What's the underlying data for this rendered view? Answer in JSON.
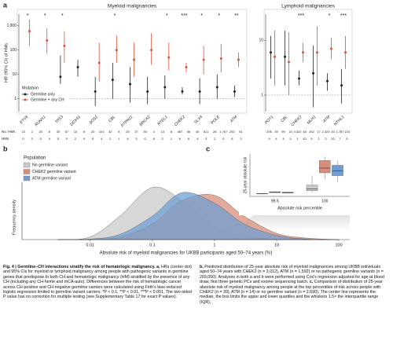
{
  "chart_data": [
    {
      "type": "interval",
      "panel": "a",
      "title": "Myeloid malignancies",
      "y_label": "HR (95% CI) of HMs",
      "log_y": true,
      "ylim": [
        0.3,
        3000
      ],
      "yticks": [
        1,
        10,
        100,
        {
          "value": 1000,
          "label": "1,000"
        }
      ],
      "categories": [
        "ETV6",
        "RUNX1",
        "TP53",
        "DDX41",
        "SOS1",
        "CBL",
        "PTPN11",
        "BRCA2",
        "RTEL1",
        "CHEK2",
        "SLX4",
        "POLE",
        "ATM"
      ],
      "significance": [
        "*",
        "*",
        "*",
        null,
        null,
        "*",
        null,
        null,
        "*",
        "***",
        "*",
        "*",
        "**"
      ],
      "legend_title": "Mutation",
      "legend": true,
      "series": [
        {
          "name": "Germline only",
          "color": "#222222",
          "values": [
            null,
            null,
            8,
            20,
            2,
            6,
            4,
            2,
            3,
            2,
            2,
            3,
            2
          ],
          "ci_low": [
            null,
            null,
            1,
            8,
            0.5,
            1,
            0.7,
            0.6,
            1,
            1.5,
            0.6,
            1,
            1.2
          ],
          "ci_high": [
            null,
            null,
            60,
            40,
            8,
            30,
            20,
            8,
            9,
            3,
            7,
            10,
            3.5
          ]
        },
        {
          "name": "Germline + any CH",
          "color": "#d9533c",
          "values": [
            600,
            250,
            150,
            null,
            30,
            100,
            40,
            100,
            50,
            20,
            40,
            45,
            40
          ],
          "ci_low": [
            150,
            70,
            30,
            null,
            5,
            30,
            8,
            25,
            15,
            12,
            10,
            12,
            20
          ],
          "ci_high": [
            1800,
            800,
            600,
            null,
            200,
            400,
            200,
            500,
            200,
            30,
            150,
            180,
            80
          ]
        }
      ],
      "counts": [
        {
          "label": "No. HMs",
          "values": [
            "13",
            "2",
            "20",
            "8",
            "30",
            "67",
            "10",
            "8",
            "20",
            "101",
            "32",
            "8",
            "20",
            "37",
            "30",
            "4",
            "13",
            "8",
            "487",
            "56",
            "40",
            "811",
            "28",
            "1,767",
            "292",
            "61"
          ]
        },
        {
          "label": "HMs",
          "values": [
            "0",
            "3",
            "0",
            "4",
            "5",
            "0",
            "2",
            "0",
            "5",
            "4",
            "2",
            "1",
            "4",
            "3",
            "0",
            "6",
            "2",
            "1",
            "6",
            "6",
            "4",
            "3",
            "2",
            "0",
            "8",
            "3"
          ]
        }
      ]
    },
    {
      "type": "interval",
      "title": "Lymphoid malignancies",
      "log_y": true,
      "ylim": [
        0.5,
        30
      ],
      "yticks": [
        1,
        10
      ],
      "categories": [
        "POT1",
        "CBL",
        "CHEK2",
        "MLH1",
        "ATM",
        "NTHL1"
      ],
      "significance": [
        null,
        null,
        "***",
        null,
        "*",
        "***"
      ],
      "legend": false,
      "series": [
        {
          "name": "Germline only",
          "color": "#222222",
          "values": [
            6,
            5,
            2,
            2.5,
            1.8,
            1.5
          ],
          "ci_low": [
            2,
            1.5,
            1.5,
            0.6,
            1.2,
            0.7
          ],
          "ci_high": [
            12,
            15,
            2.8,
            8,
            2.5,
            3
          ]
        },
        {
          "name": "Germline + any CH",
          "color": "#d9533c",
          "values": [
            5,
            4,
            6,
            6,
            7,
            6
          ],
          "ci_low": [
            1.5,
            1,
            4,
            1.5,
            4.5,
            3
          ],
          "ci_high": [
            15,
            14,
            9,
            18,
            11,
            12
          ]
        }
      ],
      "counts": [
        {
          "values": [
            "206",
            "39",
            "99",
            "15",
            "3,422",
            "48",
            "262",
            "17",
            "2,323",
            "33",
            "1,787",
            "133"
          ]
        },
        {
          "values": [
            "9",
            "4",
            "4",
            "3",
            "1",
            "43",
            "5",
            "2",
            "2",
            "20",
            "7",
            "6"
          ]
        }
      ]
    },
    {
      "type": "density",
      "panel": "b",
      "legend_title": "Population",
      "log_x": true,
      "x_label": "Absolute risk of myeloid malignancies for UKBB participants aged 50–74 years (%)",
      "y_label": "Frequency density",
      "xlim": [
        0.0008,
        150
      ],
      "xticks": [
        0.01,
        0.1,
        1,
        10,
        100
      ],
      "ylim": [
        0,
        1.1
      ],
      "x": [
        0.003,
        0.01,
        0.03,
        0.1,
        0.3,
        1,
        3,
        10,
        30,
        100
      ],
      "series": [
        {
          "name": "No germline variant",
          "color": "#c9c9c9",
          "values": [
            0,
            0.05,
            0.45,
            1.0,
            0.75,
            0.25,
            0.06,
            0.01,
            0,
            0
          ]
        },
        {
          "name": "CHEK2 germline variant",
          "color": "#d98c7a",
          "values": [
            0,
            0,
            0.05,
            0.3,
            0.75,
            0.85,
            0.45,
            0.12,
            0.03,
            0
          ]
        },
        {
          "name": "ATM germline variant",
          "color": "#6f9fd2",
          "values": [
            0,
            0.01,
            0.1,
            0.45,
            0.9,
            0.7,
            0.3,
            0.08,
            0.01,
            0
          ]
        }
      ]
    },
    {
      "type": "box",
      "panel": "c",
      "y_label": "25-year absolute risk",
      "x_label": "Absolute risk percentile",
      "ylim": [
        0,
        45
      ],
      "categories": [
        "99.5",
        "100"
      ],
      "series": [
        {
          "name": "No germline variant",
          "color": "#c9c9c9",
          "min": [
            2.2,
            4
          ],
          "q1": [
            2.6,
            6
          ],
          "median": [
            2.9,
            8
          ],
          "q3": [
            3.2,
            12
          ],
          "max": [
            3.6,
            22
          ]
        },
        {
          "name": "CHEK2 germline variant",
          "color": "#d98c7a",
          "min": [
            3.5,
            18
          ],
          "q1": [
            4,
            25
          ],
          "median": [
            4.4,
            30
          ],
          "q3": [
            4.9,
            38
          ],
          "max": [
            5.5,
            42
          ]
        },
        {
          "name": "ATM germline variant",
          "color": "#6f9fd2",
          "min": [
            3.2,
            15
          ],
          "q1": [
            3.6,
            22
          ],
          "median": [
            4,
            27
          ],
          "q3": [
            4.5,
            33
          ],
          "max": [
            5,
            38
          ]
        }
      ]
    }
  ],
  "caption": {
    "title": "Fig. 4 | Germline–CH interactions stratify the risk of hematologic malignancy.",
    "parts": [
      {
        "label": "a,",
        "text": "HRs (center dot) and 95% CIs for myeloid or lymphoid malignancy among people with pathogenic variants in germline genes that predispose to both CH and hematologic malignancy (HM) stratified by the presence of any CH (including any CH-heme and mCA-auto). Differences between the risk of hematologic cancer across CH-positive and CH-negative germline carriers were calculated using Firth's bias-reduced logistic regression limited to germline variant carriers. *P < 0.1, **P < 0.01, ***P < 0.001. The two-sided P value has no correction for multiple testing (see Supplementary Table 17 for exact P values)."
      },
      {
        "label": "b,",
        "text": "Predicted distribution of 25-year absolute risk of myeloid malignancies among UKBB individuals aged 50–74 years with CHEK2 (n = 3,012), ATM (n = 1,592) or no pathogenic germline variants (n = 269,050). Analyses in both a and b were performed using Cox's regression adjusted for age at blood draw, first three genetic PCs and exome sequencing batch."
      },
      {
        "label": "c,",
        "text": "Comparison of distribution of 25-year absolute risk of myeloid malignancy among people at the top percentiles of risk across people with CHEK2 (n = 30), ATM (n = 14) or no germline variant (n = 2,690). The center line represents the median, the box limits the upper and lower quartiles and the whiskers 1.5× the interquartile range (IQR)."
      }
    ]
  }
}
